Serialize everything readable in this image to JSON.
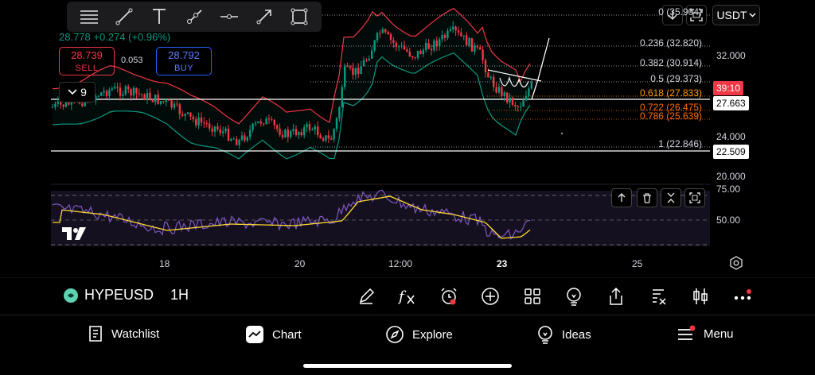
{
  "header": {
    "quote_text": "28.778 +0.274 (+0.96%)",
    "sell_price": "28.739",
    "sell_label": "SELL",
    "spread": "0.053",
    "buy_price": "28.792",
    "buy_label": "BUY",
    "indicators_count": "9",
    "currency": "USDT"
  },
  "drawing_toolbar": [
    "trend-lines-icon",
    "line-tool-icon",
    "text-tool-icon",
    "ray-tool-icon",
    "horizontal-line-icon",
    "arrow-tool-icon",
    "rectangle-tool-icon"
  ],
  "price_axis": {
    "labels": [
      "32.000",
      "24.000",
      "20.000"
    ],
    "tags": [
      {
        "text": "39:10",
        "bg": "#f23645",
        "fg": "#ffffff"
      },
      {
        "text": "27.663",
        "bg": "#ffffff",
        "fg": "#000000"
      },
      {
        "text": "22.509",
        "bg": "#ffffff",
        "fg": "#000000"
      }
    ]
  },
  "fib_levels": [
    {
      "text": "0 (35.904)",
      "color": "#d1d4dc"
    },
    {
      "text": "0.236 (32.820)",
      "color": "#d1d4dc"
    },
    {
      "text": "0.382 (30.914)",
      "color": "#d1d4dc"
    },
    {
      "text": "0.5 (29.373)",
      "color": "#d1d4dc"
    },
    {
      "text": "0.618 (27.833)",
      "color": "#ff9800"
    },
    {
      "text": "0.722 (26.475)",
      "color": "#ff6d00"
    },
    {
      "text": "0.786 (25.639)",
      "color": "#ff6d00"
    },
    {
      "text": "1 (22.846)",
      "color": "#d1d4dc"
    }
  ],
  "rsi_axis": {
    "labels": [
      "75.00",
      "50.00"
    ]
  },
  "time_axis": {
    "labels": [
      "18",
      "20",
      "12:00",
      "23",
      "25"
    ]
  },
  "symbol_bar": {
    "symbol": "HYPEUSD",
    "interval": "1H"
  },
  "nav": {
    "items": [
      {
        "label": "Watchlist"
      },
      {
        "label": "Chart"
      },
      {
        "label": "Explore"
      },
      {
        "label": "Ideas"
      },
      {
        "label": "Menu"
      }
    ]
  },
  "colors": {
    "up": "#089981",
    "down": "#f23645",
    "bb_upper": "#f23645",
    "bb_lower": "#089981",
    "rsi": "#7e57c2",
    "rsi_ma": "#fdd835"
  }
}
